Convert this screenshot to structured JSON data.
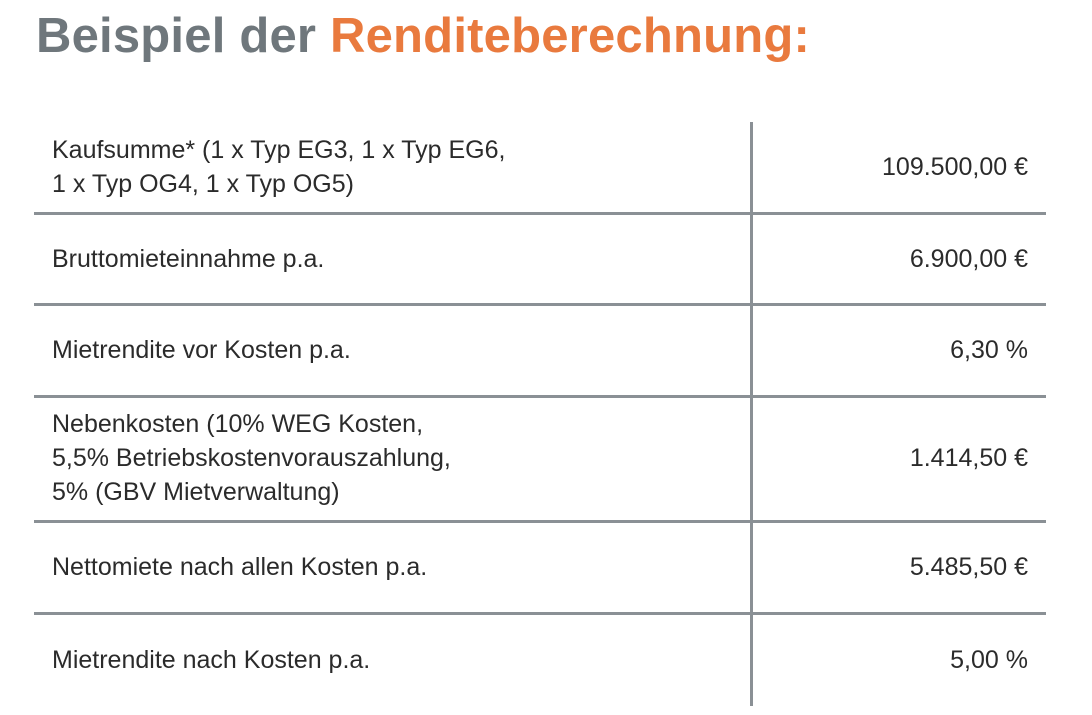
{
  "heading": {
    "part1": "Beispiel der",
    "part2": "Renditeberechnung:"
  },
  "rows": [
    {
      "label": "Kaufsumme* (1 x Typ EG3, 1 x Typ EG6,\n1 x Typ OG4, 1 x Typ OG5)",
      "value": "109.500,00 €"
    },
    {
      "label": "Bruttomieteinnahme p.a.",
      "value": "6.900,00 €"
    },
    {
      "label": "Mietrendite vor Kosten p.a.",
      "value": "6,30 %"
    },
    {
      "label": "Nebenkosten (10% WEG Kosten,\n5,5% Betriebskostenvorauszahlung,\n5% (GBV Mietverwaltung)",
      "value": "1.414,50 €"
    },
    {
      "label": "Nettomiete nach allen Kosten p.a.",
      "value": "5.485,50 €"
    },
    {
      "label": "Mietrendite nach Kosten p.a.",
      "value": "5,00 %"
    }
  ],
  "colors": {
    "heading_gray": "#6f777c",
    "heading_orange": "#e97a3e",
    "rule": "#8a9095",
    "text": "#2b2b2b"
  }
}
